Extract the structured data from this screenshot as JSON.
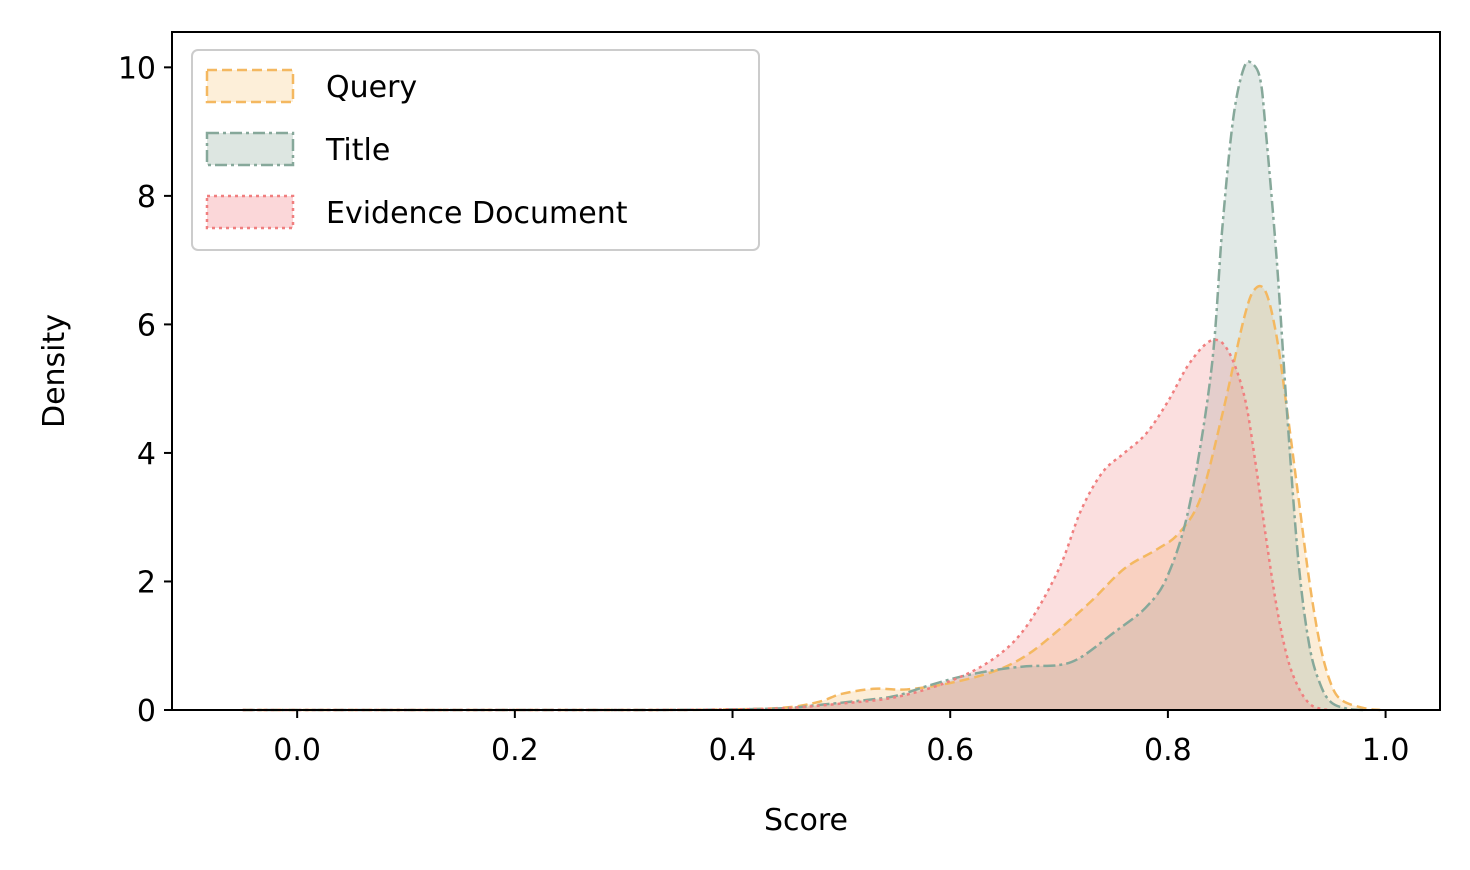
{
  "chart_data": {
    "type": "area",
    "xlabel": "Score",
    "ylabel": "Density",
    "xlim": [
      -0.115,
      1.05
    ],
    "ylim": [
      0,
      10.55
    ],
    "xticks": [
      0.0,
      0.2,
      0.4,
      0.6,
      0.8,
      1.0
    ],
    "xtick_labels": [
      "0.0",
      "0.2",
      "0.4",
      "0.6",
      "0.8",
      "1.0"
    ],
    "yticks": [
      0,
      2,
      4,
      6,
      8,
      10
    ],
    "ytick_labels": [
      "0",
      "2",
      "4",
      "6",
      "8",
      "10"
    ],
    "grid": false,
    "legend_position": "top-left",
    "series": [
      {
        "name": "Query",
        "color": "#f4b860",
        "fill": "#fdefd9",
        "dash": "dashed",
        "points": [
          [
            -0.05,
            0
          ],
          [
            0.3,
            0
          ],
          [
            0.4,
            0.01
          ],
          [
            0.45,
            0.04
          ],
          [
            0.48,
            0.13
          ],
          [
            0.5,
            0.25
          ],
          [
            0.53,
            0.33
          ],
          [
            0.56,
            0.32
          ],
          [
            0.6,
            0.42
          ],
          [
            0.64,
            0.6
          ],
          [
            0.67,
            0.85
          ],
          [
            0.7,
            1.25
          ],
          [
            0.73,
            1.7
          ],
          [
            0.76,
            2.2
          ],
          [
            0.79,
            2.5
          ],
          [
            0.81,
            2.75
          ],
          [
            0.83,
            3.3
          ],
          [
            0.85,
            4.6
          ],
          [
            0.87,
            6.1
          ],
          [
            0.88,
            6.55
          ],
          [
            0.89,
            6.5
          ],
          [
            0.9,
            5.8
          ],
          [
            0.91,
            4.6
          ],
          [
            0.92,
            3.3
          ],
          [
            0.93,
            2.0
          ],
          [
            0.94,
            1.0
          ],
          [
            0.95,
            0.4
          ],
          [
            0.96,
            0.15
          ],
          [
            0.98,
            0.03
          ],
          [
            0.995,
            0
          ]
        ]
      },
      {
        "name": "Title",
        "color": "#86a89a",
        "fill": "#dde6e1",
        "dash": "dashdot",
        "points": [
          [
            -0.05,
            0
          ],
          [
            0.3,
            0
          ],
          [
            0.4,
            0.01
          ],
          [
            0.45,
            0.03
          ],
          [
            0.48,
            0.08
          ],
          [
            0.52,
            0.15
          ],
          [
            0.55,
            0.22
          ],
          [
            0.58,
            0.38
          ],
          [
            0.61,
            0.52
          ],
          [
            0.64,
            0.62
          ],
          [
            0.67,
            0.68
          ],
          [
            0.7,
            0.7
          ],
          [
            0.72,
            0.82
          ],
          [
            0.75,
            1.2
          ],
          [
            0.78,
            1.6
          ],
          [
            0.8,
            2.1
          ],
          [
            0.82,
            3.2
          ],
          [
            0.84,
            5.3
          ],
          [
            0.85,
            7.5
          ],
          [
            0.86,
            9.2
          ],
          [
            0.87,
            10.0
          ],
          [
            0.878,
            10.05
          ],
          [
            0.885,
            9.8
          ],
          [
            0.89,
            9.0
          ],
          [
            0.9,
            7.0
          ],
          [
            0.91,
            4.5
          ],
          [
            0.92,
            2.3
          ],
          [
            0.93,
            1.0
          ],
          [
            0.94,
            0.4
          ],
          [
            0.95,
            0.12
          ],
          [
            0.965,
            0.02
          ],
          [
            0.98,
            0
          ]
        ]
      },
      {
        "name": "Evidence Document",
        "color": "#f07f7f",
        "fill": "#fbd7d9",
        "dash": "dotted",
        "points": [
          [
            -0.05,
            0
          ],
          [
            0.3,
            0
          ],
          [
            0.4,
            0.01
          ],
          [
            0.45,
            0.03
          ],
          [
            0.5,
            0.1
          ],
          [
            0.55,
            0.2
          ],
          [
            0.6,
            0.45
          ],
          [
            0.64,
            0.8
          ],
          [
            0.67,
            1.3
          ],
          [
            0.7,
            2.2
          ],
          [
            0.72,
            3.1
          ],
          [
            0.74,
            3.7
          ],
          [
            0.76,
            4.0
          ],
          [
            0.78,
            4.3
          ],
          [
            0.8,
            4.8
          ],
          [
            0.82,
            5.4
          ],
          [
            0.84,
            5.75
          ],
          [
            0.855,
            5.6
          ],
          [
            0.87,
            4.9
          ],
          [
            0.88,
            3.9
          ],
          [
            0.89,
            2.7
          ],
          [
            0.9,
            1.6
          ],
          [
            0.91,
            0.8
          ],
          [
            0.92,
            0.35
          ],
          [
            0.93,
            0.1
          ],
          [
            0.94,
            0.02
          ],
          [
            0.95,
            0
          ]
        ]
      }
    ]
  }
}
